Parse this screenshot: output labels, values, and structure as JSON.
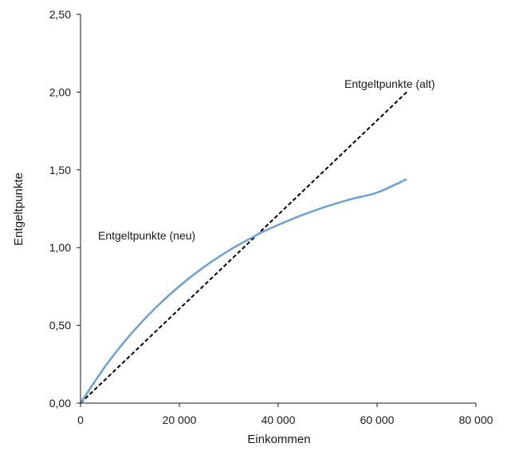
{
  "chart_data": {
    "type": "line",
    "xlabel": "Einkommen",
    "ylabel": "Entgeltpunkte",
    "xlim": [
      0,
      80000
    ],
    "ylim": [
      0,
      2.5
    ],
    "x_ticks": [
      0,
      20000,
      40000,
      60000,
      80000
    ],
    "x_tick_labels": [
      "0",
      "20 000",
      "40 000",
      "60 000",
      "80 000"
    ],
    "y_ticks": [
      0,
      0.5,
      1.0,
      1.5,
      2.0,
      2.5
    ],
    "y_tick_labels": [
      "0,00",
      "0,50",
      "1,00",
      "1,50",
      "2,00",
      "2,50"
    ],
    "grid": false,
    "legend": "none",
    "series": [
      {
        "name": "Entgeltpunkte (alt)",
        "color": "#000000",
        "line_style": "dashed",
        "x": [
          0,
          66000
        ],
        "y": [
          0,
          2.0
        ]
      },
      {
        "name": "Entgeltpunkte (neu)",
        "color": "#6f9fd3",
        "line_style": "solid",
        "x": [
          0,
          5000,
          10000,
          15000,
          20000,
          25000,
          30000,
          35000,
          37000,
          40000,
          45000,
          50000,
          55000,
          60000,
          66000
        ],
        "y": [
          0,
          0.236,
          0.437,
          0.607,
          0.752,
          0.876,
          0.981,
          1.07,
          1.103,
          1.146,
          1.211,
          1.267,
          1.314,
          1.354,
          1.44
        ]
      }
    ]
  }
}
